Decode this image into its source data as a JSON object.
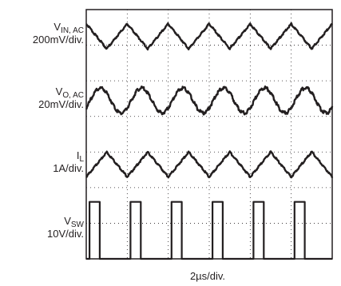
{
  "chart_data": {
    "type": "line",
    "time_scale": "2µs/div.",
    "x_divisions": 6,
    "y_divisions": 7,
    "cycles_shown": 6,
    "series": [
      {
        "id": "vin",
        "sym": "V",
        "sub": "IN, AC",
        "scale": "200mV/div.",
        "shape": "triangle",
        "amplitude_div": 0.35,
        "center_div": 0.75,
        "phase": 0.0
      },
      {
        "id": "vo",
        "sym": "V",
        "sub": "O, AC",
        "scale": "20mV/div.",
        "shape": "sine",
        "amplitude_div": 0.35,
        "center_div": 2.55,
        "phase": 0.65
      },
      {
        "id": "il",
        "sym": "I",
        "sub": "L",
        "scale": "1A/div.",
        "shape": "triangle",
        "amplitude_div": 0.35,
        "center_div": 4.35,
        "phase": 0.5
      },
      {
        "id": "vsw",
        "sym": "V",
        "sub": "SW",
        "scale": "10V/div.",
        "shape": "square",
        "amplitude_div": 0.8,
        "center_div": 6.2,
        "phase": 0.08,
        "duty": 0.25
      }
    ]
  }
}
